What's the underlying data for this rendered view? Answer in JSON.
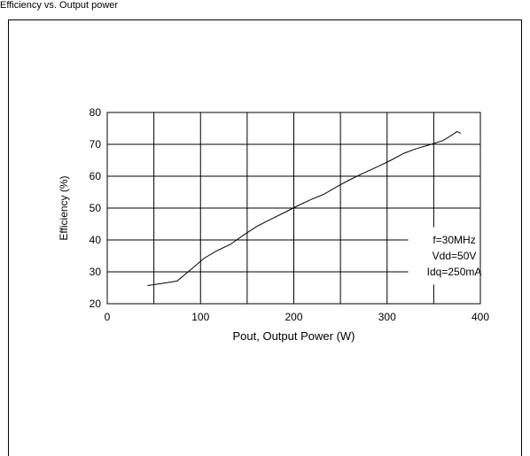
{
  "page": {
    "caption": "Efficiency vs. Output power"
  },
  "chart_data": {
    "type": "line",
    "title": "",
    "xlabel": "Pout, Output Power (W)",
    "ylabel": "Efficiency (%)",
    "xlim": [
      0,
      400
    ],
    "ylim": [
      20,
      80
    ],
    "xticks": [
      0,
      100,
      200,
      300,
      400
    ],
    "yticks": [
      20,
      30,
      40,
      50,
      60,
      70,
      80
    ],
    "grid": true,
    "annotations": [
      "f=30MHz",
      "Vdd=50V",
      "Idq=250mA"
    ],
    "legend_position": "bottom-right",
    "series": [
      {
        "x": [
          43,
          58,
          75,
          90,
          104,
          118,
          132,
          146,
          160,
          174,
          190,
          204,
          218,
          232,
          246,
          260,
          274,
          290,
          304,
          318,
          332,
          346,
          360,
          370,
          375,
          379
        ],
        "y": [
          25.7,
          26.3,
          27.1,
          30.8,
          34.3,
          36.7,
          38.6,
          41.5,
          44.2,
          46.3,
          48.6,
          50.7,
          52.6,
          54.3,
          56.7,
          58.9,
          60.9,
          63.0,
          65.0,
          67.2,
          68.7,
          69.9,
          71.2,
          73.0,
          74.0,
          73.5
        ]
      }
    ]
  }
}
